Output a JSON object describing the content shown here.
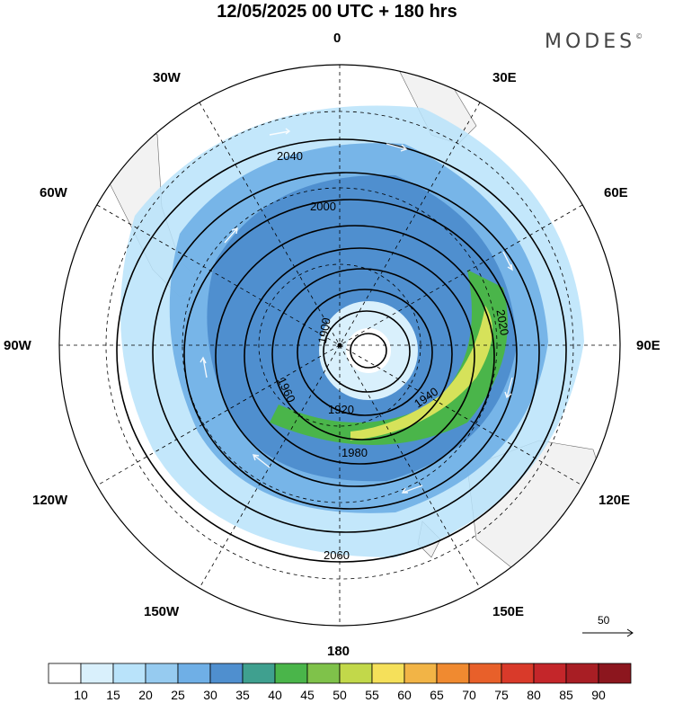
{
  "header": {
    "title": "12/05/2025  00 UTC  + 180 hrs",
    "brand": "MODES"
  },
  "map": {
    "projection": "south-polar-stereographic",
    "longitude_labels": [
      "0",
      "30E",
      "60E",
      "90E",
      "120E",
      "150E",
      "180",
      "150W",
      "120W",
      "90W",
      "60W",
      "30W"
    ],
    "contour_labels": [
      "1900",
      "1920",
      "1940",
      "1960",
      "1980",
      "2000",
      "2020",
      "2040",
      "2060"
    ],
    "contour_field": "geopotential height (dam)",
    "shaded_field": "wind speed",
    "reference_vector": "50",
    "land_color": "#f2f2f2"
  },
  "colorbar": {
    "tick_labels": [
      "10",
      "15",
      "20",
      "25",
      "30",
      "35",
      "40",
      "45",
      "50",
      "55",
      "60",
      "65",
      "70",
      "75",
      "80",
      "85",
      "90"
    ],
    "colors": [
      "#ffffff",
      "#d9f0fc",
      "#b9e3fa",
      "#96cbf0",
      "#6fafe6",
      "#4f8fcf",
      "#3fa08f",
      "#4ab54a",
      "#7fc24a",
      "#c2d84a",
      "#f5e05a",
      "#f2b446",
      "#f08a30",
      "#e8602a",
      "#d93a2a",
      "#c4262a",
      "#a81e24",
      "#8c161e"
    ]
  }
}
